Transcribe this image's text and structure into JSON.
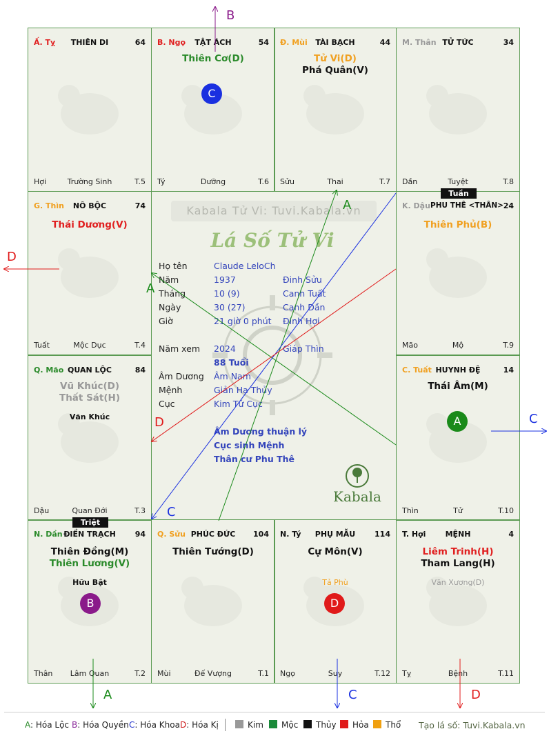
{
  "cells": [
    {
      "id": "ty",
      "can": "Ấ. Tỵ",
      "can_color": "#e02020",
      "palace": "THIÊN DI",
      "num": "64",
      "stars": [],
      "minors": [],
      "footer": {
        "left": "Hợi",
        "mid": "Trường Sinh",
        "right": "T.5"
      }
    },
    {
      "id": "ngo",
      "can": "B. Ngọ",
      "can_color": "#e02020",
      "palace": "TẬT ÁCH",
      "num": "54",
      "stars": [
        {
          "t": "Thiên Cơ(D)",
          "c": "#2a8a2a"
        }
      ],
      "minors": [],
      "footer": {
        "left": "Tý",
        "mid": "Dưỡng",
        "right": "T.6"
      }
    },
    {
      "id": "mui",
      "can": "Đ. Mùi",
      "can_color": "#f0a020",
      "palace": "TÀI BẠCH",
      "num": "44",
      "stars": [
        {
          "t": "Tử Vi(D)",
          "c": "#f0a020"
        },
        {
          "t": "Phá Quân(V)",
          "c": "#111111"
        }
      ],
      "minors": [],
      "footer": {
        "left": "Sửu",
        "mid": "Thai",
        "right": "T.7"
      }
    },
    {
      "id": "than",
      "can": "M. Thân",
      "can_color": "#999999",
      "palace": "TỬ TỨC",
      "num": "34",
      "stars": [],
      "minors": [],
      "footer": {
        "left": "Dần",
        "mid": "Tuyệt",
        "right": "T.8"
      }
    },
    {
      "id": "thin",
      "can": "G. Thìn",
      "can_color": "#f0a020",
      "palace": "NÔ BỘC",
      "num": "74",
      "stars": [
        {
          "t": "Thái Dương(V)",
          "c": "#e02020"
        }
      ],
      "minors": [],
      "footer": {
        "left": "Tuất",
        "mid": "Mộc Dục",
        "right": "T.4"
      }
    },
    {
      "id": "dau",
      "can": "K. Dậu",
      "can_color": "#999999",
      "palace": "PHU THÊ <THÂN>",
      "num": "24",
      "stars": [
        {
          "t": "Thiên Phủ(B)",
          "c": "#f0a020"
        }
      ],
      "minors": [],
      "footer": {
        "left": "Mão",
        "mid": "Mộ",
        "right": "T.9"
      }
    },
    {
      "id": "mao",
      "can": "Q. Mão",
      "can_color": "#2a8a2a",
      "palace": "QUAN LỘC",
      "num": "84",
      "stars": [
        {
          "t": "Vũ Khúc(D)",
          "c": "#999999"
        },
        {
          "t": "Thất Sát(H)",
          "c": "#999999"
        }
      ],
      "minors": [
        {
          "t": "Văn Khúc",
          "c": "#111111"
        }
      ],
      "footer": {
        "left": "Dậu",
        "mid": "Quan Đới",
        "right": "T.3"
      }
    },
    {
      "id": "tuat",
      "can": "C. Tuất",
      "can_color": "#f0a020",
      "palace": "HUYNH ĐỆ",
      "num": "14",
      "stars": [
        {
          "t": "Thái Âm(M)",
          "c": "#111111"
        }
      ],
      "minors": [],
      "footer": {
        "left": "Thìn",
        "mid": "Tử",
        "right": "T.10"
      }
    },
    {
      "id": "dan",
      "can": "N. Dần",
      "can_color": "#2a8a2a",
      "palace": "ĐIỀN TRẠCH",
      "num": "94",
      "stars": [
        {
          "t": "Thiên Đồng(M)",
          "c": "#111111"
        },
        {
          "t": "Thiên Lương(V)",
          "c": "#2a8a2a"
        }
      ],
      "minors": [
        {
          "t": "Hữu Bật",
          "c": "#111111"
        }
      ],
      "footer": {
        "left": "Thân",
        "mid": "Lâm Quan",
        "right": "T.2"
      }
    },
    {
      "id": "suu",
      "can": "Q. Sửu",
      "can_color": "#f0a020",
      "palace": "PHÚC ĐỨC",
      "num": "104",
      "stars": [
        {
          "t": "Thiên Tướng(D)",
          "c": "#111111"
        }
      ],
      "minors": [],
      "footer": {
        "left": "Mùi",
        "mid": "Đế Vượng",
        "right": "T.1"
      }
    },
    {
      "id": "ty2",
      "can": "N. Tý",
      "can_color": "#111111",
      "palace": "PHỤ MẪU",
      "num": "114",
      "stars": [
        {
          "t": "Cự Môn(V)",
          "c": "#111111"
        }
      ],
      "minors": [
        {
          "t": "Tả Phù",
          "c": "#f0a020"
        }
      ],
      "footer": {
        "left": "Ngọ",
        "mid": "Suy",
        "right": "T.12"
      }
    },
    {
      "id": "hoi",
      "can": "T. Hợi",
      "can_color": "#111111",
      "palace": "MỆNH",
      "num": "4",
      "stars": [
        {
          "t": "Liêm Trinh(H)",
          "c": "#e02020"
        },
        {
          "t": "Tham Lang(H)",
          "c": "#111111"
        }
      ],
      "minors": [
        {
          "t": "Văn Xương(D)",
          "c": "#999999"
        }
      ],
      "footer": {
        "left": "Tỵ",
        "mid": "Bệnh",
        "right": "T.11"
      }
    }
  ],
  "center": {
    "watermark": "Kabala Tử Vi: Tuvi.Kabala.vn",
    "title": "Lá Số Tử Vi",
    "rows": [
      {
        "k": "Họ tên",
        "v": "Claude LeloCh",
        "w": ""
      },
      {
        "k": "Năm",
        "v": "1937",
        "w": "Đinh Sửu"
      },
      {
        "k": "Tháng",
        "v": "10  (9)",
        "w": "Canh Tuất"
      },
      {
        "k": "Ngày",
        "v": "30  (27)",
        "w": "Canh Dần"
      },
      {
        "k": "Giờ",
        "v": "21 giờ 0 phút",
        "w": "Đinh Hợi"
      }
    ],
    "nam_xem": {
      "k": "Năm xem",
      "v": "2024",
      "w": "Giáp Thìn"
    },
    "tuoi": "88 Tuổi",
    "rows2": [
      {
        "k": "Âm Dương",
        "v": "Âm Nam"
      },
      {
        "k": "Mệnh",
        "v": "Giản Hạ Thủy"
      },
      {
        "k": "Cục",
        "v": "Kim Tứ Cục"
      }
    ],
    "notes": [
      "Âm Dương thuận lý",
      "Cục sinh Mệnh",
      "Thân cư Phu Thê"
    ],
    "logo_text": "Kabala"
  },
  "badges": {
    "tuan": "Tuần",
    "triet": "Triệt",
    "a": "A",
    "b": "B",
    "c": "C",
    "d": "D"
  },
  "arrow_labels": {
    "top": "B",
    "left": "D",
    "right": "C",
    "bottom_a": "A",
    "bottom_c": "C",
    "bottom_d": "D",
    "inner_a1": "A",
    "inner_a2": "A",
    "inner_c": "C",
    "inner_d": "D"
  },
  "legend": {
    "hoa": [
      {
        "k": "A",
        "t": ": Hóa Lộc",
        "c": "#2a8a2a"
      },
      {
        "k": "B",
        "t": ": Hóa Quyền",
        "c": "#8a2a9a"
      },
      {
        "k": "C",
        "t": ": Hóa Khoa",
        "c": "#2233cc"
      },
      {
        "k": "D",
        "t": ": Hóa Kị",
        "c": "#cc1a1a"
      }
    ],
    "elements": [
      {
        "t": "Kim",
        "c": "#999999"
      },
      {
        "t": "Mộc",
        "c": "#1a8a3a"
      },
      {
        "t": "Thủy",
        "c": "#111111"
      },
      {
        "t": "Hỏa",
        "c": "#e01a1a"
      },
      {
        "t": "Thổ",
        "c": "#f0a010"
      }
    ],
    "site": "Tạo lá số: Tuvi.Kabala.vn"
  },
  "colors": {
    "grid": "#5a9a52",
    "bg": "#eff1e8",
    "a": "#1a8a1a",
    "b": "#8a1a8a",
    "c": "#1a30e0",
    "d": "#e01a1a"
  }
}
